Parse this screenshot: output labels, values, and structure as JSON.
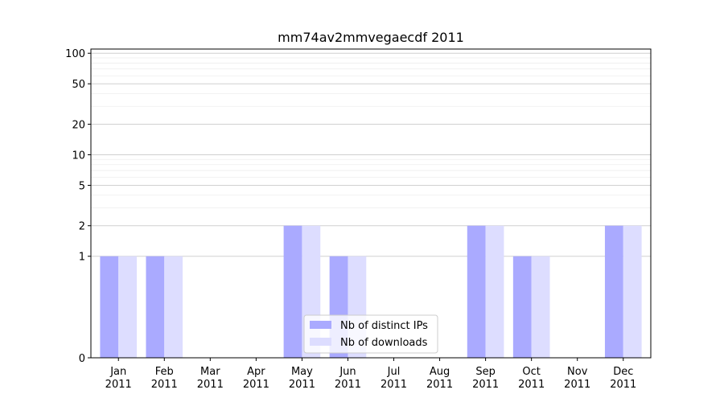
{
  "chart_data": {
    "type": "bar",
    "title": "mm74av2mmvegaecdf 2011",
    "xlabel": "",
    "ylabel": "",
    "y_scale": "symlog",
    "ylim": [
      0,
      110
    ],
    "y_ticks": [
      0,
      1,
      2,
      5,
      10,
      20,
      50,
      100
    ],
    "y_tick_labels": [
      "0",
      "1",
      "2",
      "5",
      "10",
      "20",
      "50",
      "100"
    ],
    "grid": true,
    "legend_position": "lower-center",
    "categories": [
      {
        "month": "Jan",
        "year": "2011"
      },
      {
        "month": "Feb",
        "year": "2011"
      },
      {
        "month": "Mar",
        "year": "2011"
      },
      {
        "month": "Apr",
        "year": "2011"
      },
      {
        "month": "May",
        "year": "2011"
      },
      {
        "month": "Jun",
        "year": "2011"
      },
      {
        "month": "Jul",
        "year": "2011"
      },
      {
        "month": "Aug",
        "year": "2011"
      },
      {
        "month": "Sep",
        "year": "2011"
      },
      {
        "month": "Oct",
        "year": "2011"
      },
      {
        "month": "Nov",
        "year": "2011"
      },
      {
        "month": "Dec",
        "year": "2011"
      }
    ],
    "series": [
      {
        "name": "Nb of distinct IPs",
        "color": "#aaaaff",
        "values": [
          1,
          1,
          0,
          0,
          2,
          1,
          0,
          0,
          2,
          1,
          0,
          2
        ]
      },
      {
        "name": "Nb of downloads",
        "color": "#ddddff",
        "values": [
          1,
          1,
          0,
          0,
          2,
          1,
          0,
          0,
          2,
          1,
          0,
          2
        ]
      }
    ]
  }
}
